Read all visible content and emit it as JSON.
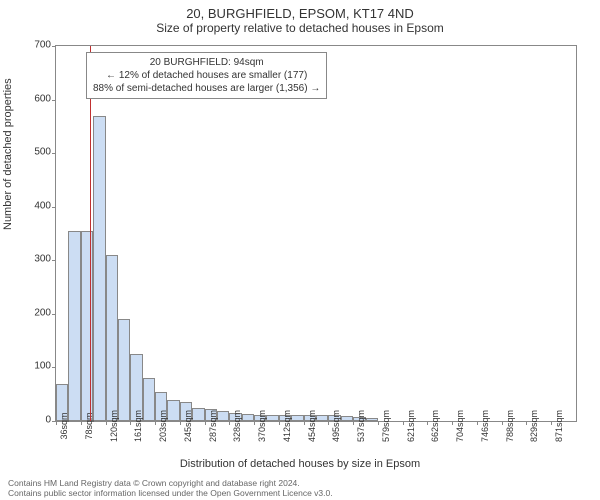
{
  "title_main": "20, BURGHFIELD, EPSOM, KT17 4ND",
  "title_sub": "Size of property relative to detached houses in Epsom",
  "ylabel": "Number of detached properties",
  "xlabel": "Distribution of detached houses by size in Epsom",
  "chart": {
    "type": "histogram",
    "background_color": "#ffffff",
    "border_color": "#888888",
    "bar_fill": "#ccddf3",
    "bar_stroke": "#888888",
    "refline_color": "#c03030",
    "refline_x": 94,
    "ylim": [
      0,
      700
    ],
    "ytick_step": 100,
    "yticks": [
      0,
      100,
      200,
      300,
      400,
      500,
      600,
      700
    ],
    "x_start": 36,
    "x_bin_width": 20.85,
    "x_labels": [
      "36sqm",
      "78sqm",
      "120sqm",
      "161sqm",
      "203sqm",
      "245sqm",
      "287sqm",
      "328sqm",
      "370sqm",
      "412sqm",
      "454sqm",
      "495sqm",
      "537sqm",
      "579sqm",
      "621sqm",
      "662sqm",
      "704sqm",
      "746sqm",
      "788sqm",
      "829sqm",
      "871sqm"
    ],
    "x_label_every": 2,
    "bars": [
      70,
      355,
      355,
      570,
      310,
      190,
      125,
      80,
      55,
      40,
      35,
      25,
      22,
      18,
      15,
      14,
      12,
      12,
      12,
      12,
      12,
      12,
      12,
      10,
      8,
      6,
      0,
      0,
      0,
      0,
      0,
      0,
      0,
      0,
      0,
      0,
      0,
      0,
      0,
      0,
      0,
      0
    ]
  },
  "annotation": {
    "line1": "20 BURGHFIELD: 94sqm",
    "line2": "← 12% of detached houses are smaller (177)",
    "line3": "88% of semi-detached houses are larger (1,356) →"
  },
  "footer": {
    "line1": "Contains HM Land Registry data © Crown copyright and database right 2024.",
    "line2": "Contains public sector information licensed under the Open Government Licence v3.0."
  }
}
